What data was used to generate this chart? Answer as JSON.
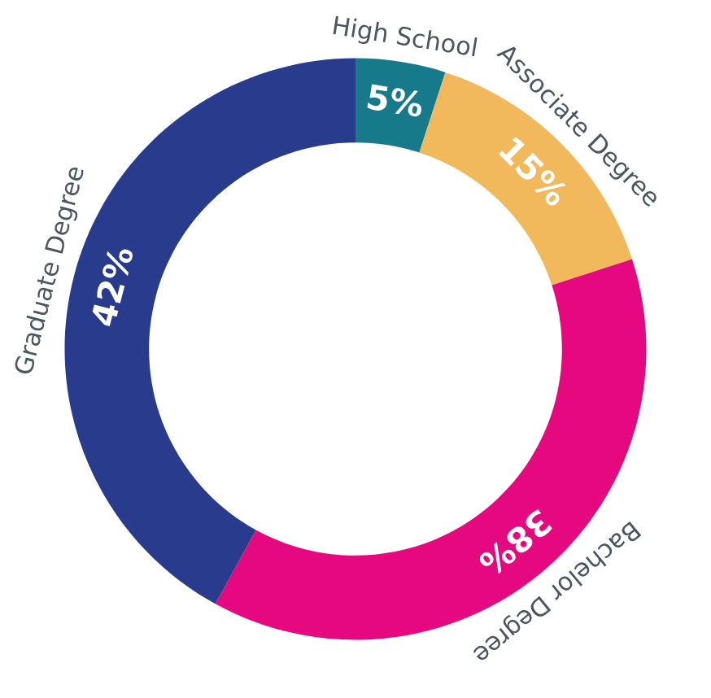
{
  "chart_data": {
    "type": "donut",
    "categories": [
      "High School",
      "Associate Degree",
      "Bachelor Degree",
      "Graduate Degree"
    ],
    "values": [
      5,
      15,
      38,
      42
    ],
    "value_labels": [
      "5%",
      "15%",
      "38%",
      "42%"
    ],
    "colors": [
      "#177a8a",
      "#f2b85c",
      "#e6087f",
      "#283b8c"
    ]
  }
}
